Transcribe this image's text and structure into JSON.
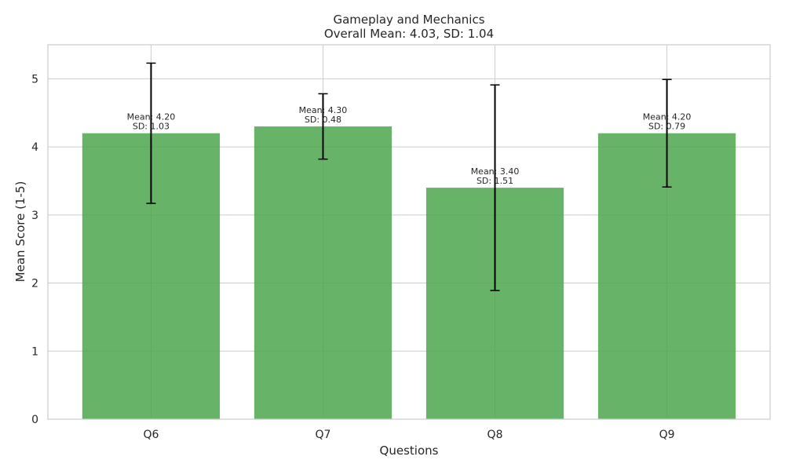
{
  "chart_data": {
    "type": "bar",
    "title": "Gameplay and Mechanics",
    "subtitle": "Overall Mean: 4.03, SD: 1.04",
    "xlabel": "Questions",
    "ylabel": "Mean Score (1-5)",
    "categories": [
      "Q6",
      "Q7",
      "Q8",
      "Q9"
    ],
    "values": [
      4.2,
      4.3,
      3.4,
      4.2
    ],
    "errors": [
      1.03,
      0.48,
      1.51,
      0.79
    ],
    "data_labels": [
      [
        "Mean: 4.20",
        "SD: 1.03"
      ],
      [
        "Mean: 4.30",
        "SD: 0.48"
      ],
      [
        "Mean: 3.40",
        "SD: 1.51"
      ],
      [
        "Mean: 4.20",
        "SD: 0.79"
      ]
    ],
    "yticks": [
      0,
      1,
      2,
      3,
      4,
      5
    ],
    "ylim": [
      0,
      5.5
    ],
    "grid": true,
    "bar_color": "#4ca64c",
    "error_color": "#000000"
  }
}
